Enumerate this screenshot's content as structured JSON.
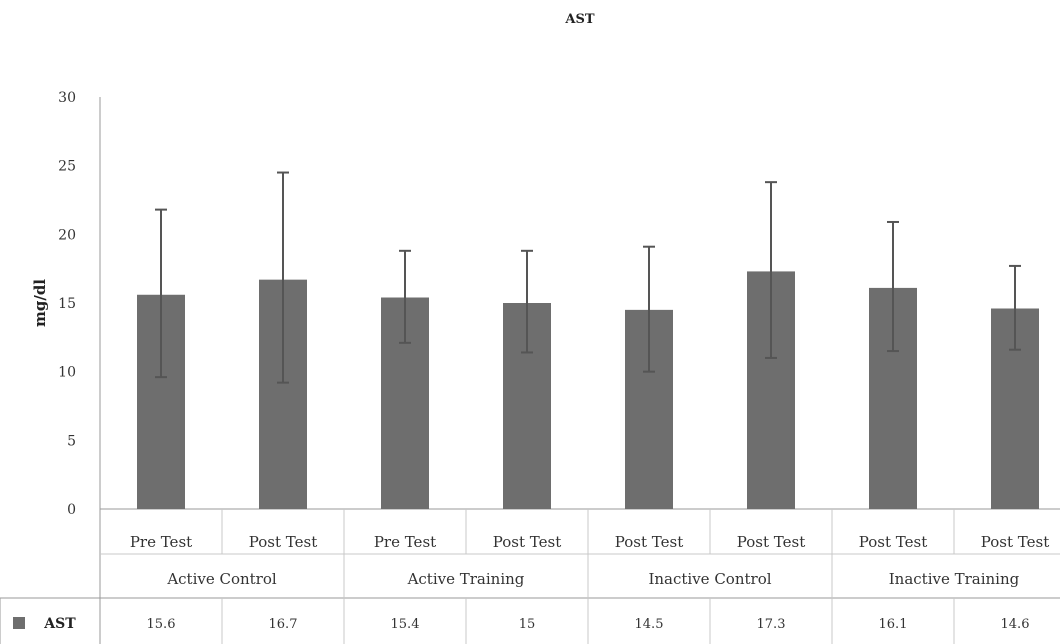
{
  "chart_data": {
    "type": "bar",
    "title": "AST",
    "ylabel": "mg/dl",
    "ylim": [
      0,
      30
    ],
    "yticks": [
      0,
      5,
      10,
      15,
      20,
      25,
      30
    ],
    "categories": [
      "Pre Test",
      "Post Test",
      "Pre Test",
      "Post Test",
      "Post Test",
      "Post Test",
      "Post Test",
      "Post Test"
    ],
    "groups": [
      {
        "label": "Active Control",
        "span": 2
      },
      {
        "label": "Active Training",
        "span": 2
      },
      {
        "label": "Inactive Control",
        "span": 2
      },
      {
        "label": "Inactive Training",
        "span": 2
      }
    ],
    "series": [
      {
        "name": "AST",
        "color": "#6e6e6e",
        "values": [
          15.6,
          16.7,
          15.4,
          15,
          14.5,
          17.3,
          16.1,
          14.6
        ],
        "value_labels": [
          "15.6",
          "16.7",
          "15.4",
          "15",
          "14.5",
          "17.3",
          "16.1",
          "14.6"
        ],
        "error_upper": [
          21.8,
          24.5,
          18.8,
          18.8,
          19.1,
          23.8,
          20.9,
          17.7
        ],
        "error_lower": [
          9.6,
          9.2,
          12.1,
          11.4,
          10.0,
          11.0,
          11.5,
          11.6
        ]
      }
    ],
    "grid": false,
    "legend": "data-table"
  }
}
